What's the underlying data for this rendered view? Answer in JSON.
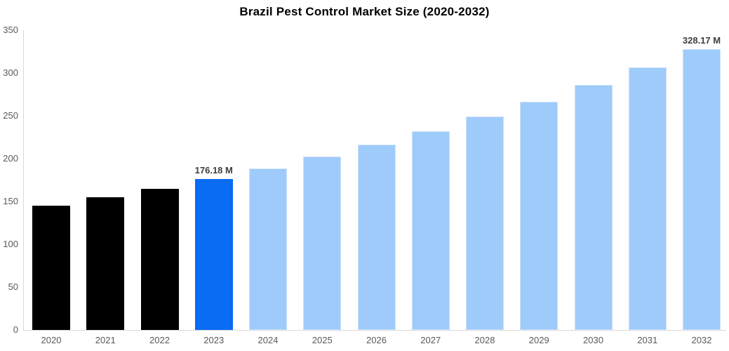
{
  "chart_data": {
    "type": "bar",
    "title": "Brazil Pest Control Market Size (2020-2032)",
    "categories": [
      "2020",
      "2021",
      "2022",
      "2023",
      "2024",
      "2025",
      "2026",
      "2027",
      "2028",
      "2029",
      "2030",
      "2031",
      "2032"
    ],
    "values": [
      145,
      155,
      165,
      176.18,
      188.8,
      202.3,
      216.8,
      232.3,
      249.0,
      266.8,
      285.9,
      306.4,
      328.17
    ],
    "unit": "M",
    "value_annotations": [
      {
        "index": 3,
        "text": "176.18 M"
      },
      {
        "index": 12,
        "text": "328.17 M"
      }
    ],
    "bar_colors": [
      "#000000",
      "#000000",
      "#000000",
      "#0a6bf3",
      "#9ecbfa",
      "#9ecbfa",
      "#9ecbfa",
      "#9ecbfa",
      "#9ecbfa",
      "#9ecbfa",
      "#9ecbfa",
      "#9ecbfa",
      "#9ecbfa"
    ],
    "bar_roles": [
      "historical",
      "historical",
      "historical",
      "highlight",
      "forecast",
      "forecast",
      "forecast",
      "forecast",
      "forecast",
      "forecast",
      "forecast",
      "forecast",
      "forecast"
    ],
    "y_ticks": [
      0,
      50,
      100,
      150,
      200,
      250,
      300,
      350
    ],
    "ylim": [
      0,
      350
    ],
    "xlabel": "",
    "ylabel": "",
    "grid": false,
    "legend": false,
    "colors": {
      "historical_bar": "#000000",
      "highlight_bar": "#0a6bf3",
      "forecast_bar": "#9ecbfa",
      "axis_line": "#d9d9d9",
      "tick_label": "#595959",
      "value_label": "#3d3d3d",
      "title": "#000000",
      "background": "#ffffff"
    }
  }
}
